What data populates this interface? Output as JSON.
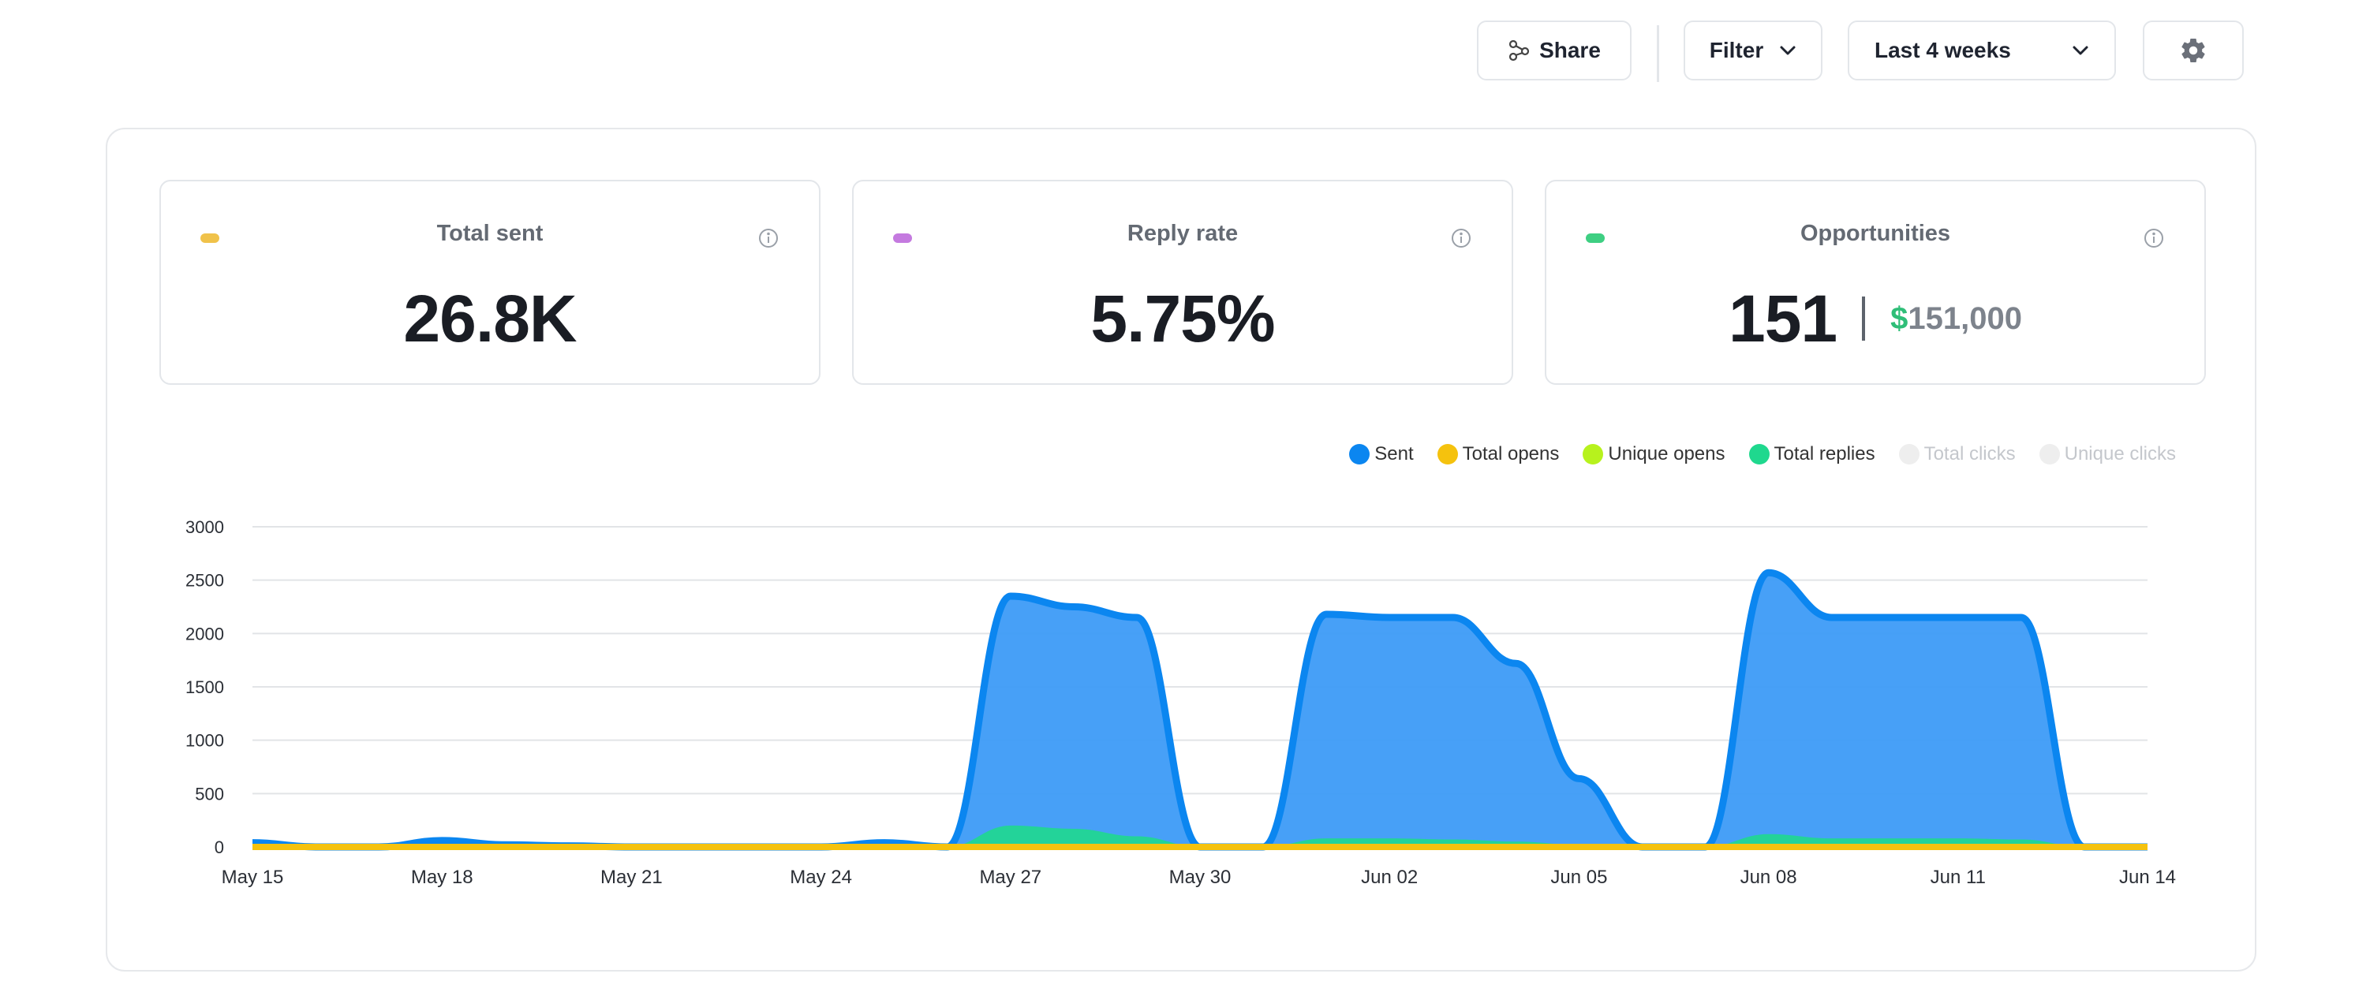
{
  "toolbar": {
    "share_label": "Share",
    "filter_label": "Filter",
    "range_label": "Last 4 weeks"
  },
  "stats": {
    "total_sent": {
      "title": "Total sent",
      "value": "26.8K",
      "accent": "#f0c24a"
    },
    "reply_rate": {
      "title": "Reply rate",
      "value": "5.75%",
      "accent": "#c47adf"
    },
    "opportunities": {
      "title": "Opportunities",
      "value": "151",
      "currency": "$",
      "amount": "151,000",
      "accent": "#3ecf82"
    }
  },
  "colors": {
    "sent": "#0b86f0",
    "sent_fill": "#3d9bf7",
    "total_opens": "#f5c20e",
    "unique_opens": "#b7f21d",
    "total_replies": "#1fd88e",
    "disabled": "#eeeeee"
  },
  "legend": [
    {
      "label": "Sent",
      "color": "#0b86f0",
      "enabled": true
    },
    {
      "label": "Total opens",
      "color": "#f5c20e",
      "enabled": true
    },
    {
      "label": "Unique opens",
      "color": "#b7f21d",
      "enabled": true
    },
    {
      "label": "Total replies",
      "color": "#1fd88e",
      "enabled": true
    },
    {
      "label": "Total clicks",
      "color": "#eeeeee",
      "enabled": false
    },
    {
      "label": "Unique clicks",
      "color": "#eeeeee",
      "enabled": false
    }
  ],
  "chart_data": {
    "type": "area",
    "x_ticks": [
      "May 15",
      "May 18",
      "May 21",
      "May 24",
      "May 27",
      "May 30",
      "Jun 02",
      "Jun 05",
      "Jun 08",
      "Jun 11",
      "Jun 14"
    ],
    "y_ticks": [
      0,
      500,
      1000,
      1500,
      2000,
      2500,
      3000
    ],
    "ylim": [
      0,
      3000
    ],
    "grid": true,
    "legend_position": "top-right",
    "x": [
      "May 15",
      "May 16",
      "May 17",
      "May 18",
      "May 19",
      "May 20",
      "May 21",
      "May 22",
      "May 23",
      "May 24",
      "May 25",
      "May 26",
      "May 27",
      "May 28",
      "May 29",
      "May 30",
      "May 31",
      "Jun 01",
      "Jun 02",
      "Jun 03",
      "Jun 04",
      "Jun 05",
      "Jun 06",
      "Jun 07",
      "Jun 08",
      "Jun 09",
      "Jun 10",
      "Jun 11",
      "Jun 12",
      "Jun 13",
      "Jun 14"
    ],
    "series": [
      {
        "name": "Sent",
        "values": [
          40,
          0,
          0,
          60,
          20,
          10,
          0,
          0,
          0,
          0,
          40,
          0,
          2350,
          2250,
          2150,
          0,
          0,
          2180,
          2150,
          2150,
          1720,
          640,
          0,
          0,
          2570,
          2150,
          2150,
          2150,
          2150,
          0,
          0
        ]
      },
      {
        "name": "Total opens",
        "values": [
          0,
          0,
          0,
          0,
          0,
          0,
          0,
          0,
          0,
          0,
          0,
          0,
          0,
          0,
          0,
          0,
          0,
          0,
          0,
          0,
          0,
          0,
          0,
          0,
          0,
          0,
          0,
          0,
          0,
          0,
          0
        ]
      },
      {
        "name": "Unique opens",
        "values": [
          0,
          0,
          0,
          0,
          0,
          0,
          0,
          0,
          0,
          0,
          0,
          0,
          0,
          0,
          0,
          0,
          0,
          0,
          0,
          0,
          0,
          0,
          0,
          0,
          0,
          0,
          0,
          0,
          0,
          0,
          0
        ]
      },
      {
        "name": "Total replies",
        "values": [
          0,
          0,
          0,
          0,
          0,
          0,
          0,
          0,
          0,
          0,
          0,
          0,
          200,
          170,
          100,
          0,
          0,
          80,
          80,
          70,
          50,
          20,
          0,
          0,
          120,
          80,
          80,
          80,
          70,
          0,
          0
        ]
      }
    ]
  }
}
